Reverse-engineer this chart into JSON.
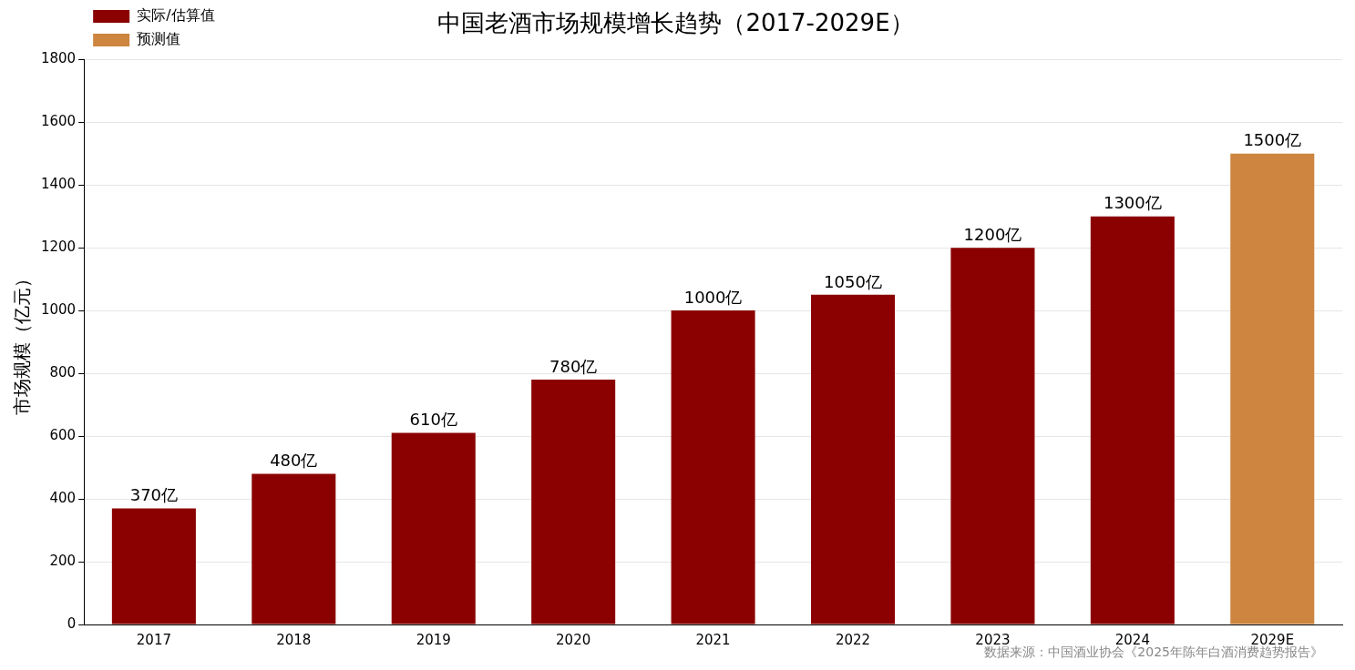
{
  "chart_data": {
    "type": "bar",
    "title": "中国老酒市场规模增长趋势（2017-2029E）",
    "ylabel": "市场规模（亿元）",
    "categories": [
      "2017",
      "2018",
      "2019",
      "2020",
      "2021",
      "2022",
      "2023",
      "2024",
      "2029E"
    ],
    "series": [
      {
        "name": "实际/估算值",
        "color": "#8b0000",
        "values": [
          370,
          480,
          610,
          780,
          1000,
          1050,
          1200,
          1300,
          null
        ],
        "value_labels": [
          "370亿",
          "480亿",
          "610亿",
          "780亿",
          "1000亿",
          "1050亿",
          "1200亿",
          "1300亿",
          null
        ]
      },
      {
        "name": "预测值",
        "color": "#cd853f",
        "values": [
          null,
          null,
          null,
          null,
          null,
          null,
          null,
          null,
          1500
        ],
        "value_labels": [
          null,
          null,
          null,
          null,
          null,
          null,
          null,
          null,
          "1500亿"
        ]
      }
    ],
    "ylim": [
      0,
      1800
    ],
    "yticks": [
      0,
      200,
      400,
      600,
      800,
      1000,
      1200,
      1400,
      1600,
      1800
    ],
    "grid": "y",
    "legend": "top left",
    "annotations": [
      "数据来源：中国酒业协会《2025年陈年白酒消费趋势报告》"
    ]
  }
}
